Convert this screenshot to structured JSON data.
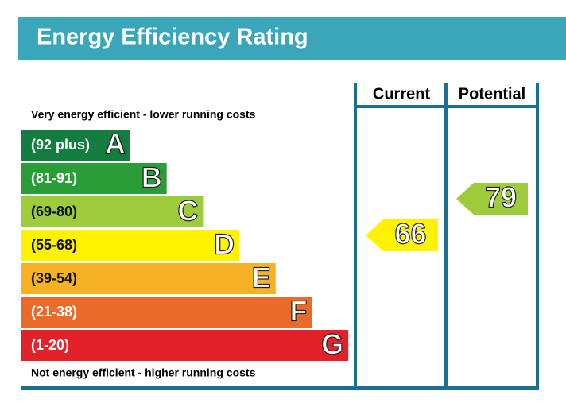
{
  "header": {
    "title": "Energy Efficiency Rating",
    "color": "#3aa6b9"
  },
  "top_label": "Very energy efficient - lower running costs",
  "bottom_label": "Not energy efficient - higher running costs",
  "bands": [
    {
      "range": "(92 plus)",
      "letter": "A",
      "color": "#127d3e"
    },
    {
      "range": "(81-91)",
      "letter": "B",
      "color": "#2b9d36"
    },
    {
      "range": "(69-80)",
      "letter": "C",
      "color": "#9ecb3c"
    },
    {
      "range": "(55-68)",
      "letter": "D",
      "color": "#fff200"
    },
    {
      "range": "(39-54)",
      "letter": "E",
      "color": "#f6b125"
    },
    {
      "range": "(21-38)",
      "letter": "F",
      "color": "#ea6a2a"
    },
    {
      "range": "(1-20)",
      "letter": "G",
      "color": "#e2212b"
    }
  ],
  "columns": [
    "Current",
    "Potential"
  ],
  "current": {
    "value": 66,
    "color": "#fff200"
  },
  "potential": {
    "value": 79,
    "color": "#9ecb3c"
  }
}
